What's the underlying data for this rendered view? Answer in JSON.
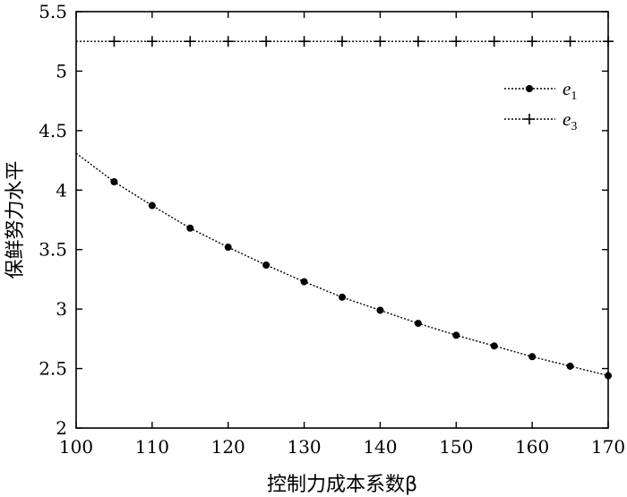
{
  "chart_data": {
    "type": "line",
    "xlabel": "控制力成本系数β",
    "ylabel": "保鲜努力水平",
    "xlim": [
      100,
      170
    ],
    "ylim": [
      2,
      5.5
    ],
    "xticks": [
      100,
      110,
      120,
      130,
      140,
      150,
      160,
      170
    ],
    "yticks": [
      2,
      2.5,
      3,
      3.5,
      4,
      4.5,
      5,
      5.5
    ],
    "ytick_labels": [
      "2",
      "2.5",
      "3",
      "3.5",
      "4",
      "4.5",
      "5",
      "5.5"
    ],
    "grid": false,
    "legend_position": "top-right",
    "series": [
      {
        "name": "e1",
        "label_main": "e",
        "label_sub": "1",
        "marker": "dot",
        "line_style": "dotted",
        "color": "#000000",
        "x": [
          100,
          105,
          110,
          115,
          120,
          125,
          130,
          135,
          140,
          145,
          150,
          155,
          160,
          165,
          170
        ],
        "values": [
          4.31,
          4.07,
          3.87,
          3.68,
          3.52,
          3.37,
          3.23,
          3.1,
          2.99,
          2.88,
          2.78,
          2.69,
          2.6,
          2.52,
          2.44
        ],
        "marker_x": [
          105,
          110,
          115,
          120,
          125,
          130,
          135,
          140,
          145,
          150,
          155,
          160,
          165,
          170
        ]
      },
      {
        "name": "e3",
        "label_main": "e",
        "label_sub": "3",
        "marker": "plus",
        "line_style": "dotted",
        "color": "#000000",
        "x": [
          100,
          105,
          110,
          115,
          120,
          125,
          130,
          135,
          140,
          145,
          150,
          155,
          160,
          165,
          170
        ],
        "values": [
          5.25,
          5.25,
          5.25,
          5.25,
          5.25,
          5.25,
          5.25,
          5.25,
          5.25,
          5.25,
          5.25,
          5.25,
          5.25,
          5.25,
          5.25
        ],
        "marker_x": [
          105,
          110,
          115,
          120,
          125,
          130,
          135,
          140,
          145,
          150,
          155,
          160,
          165,
          170
        ]
      }
    ]
  }
}
